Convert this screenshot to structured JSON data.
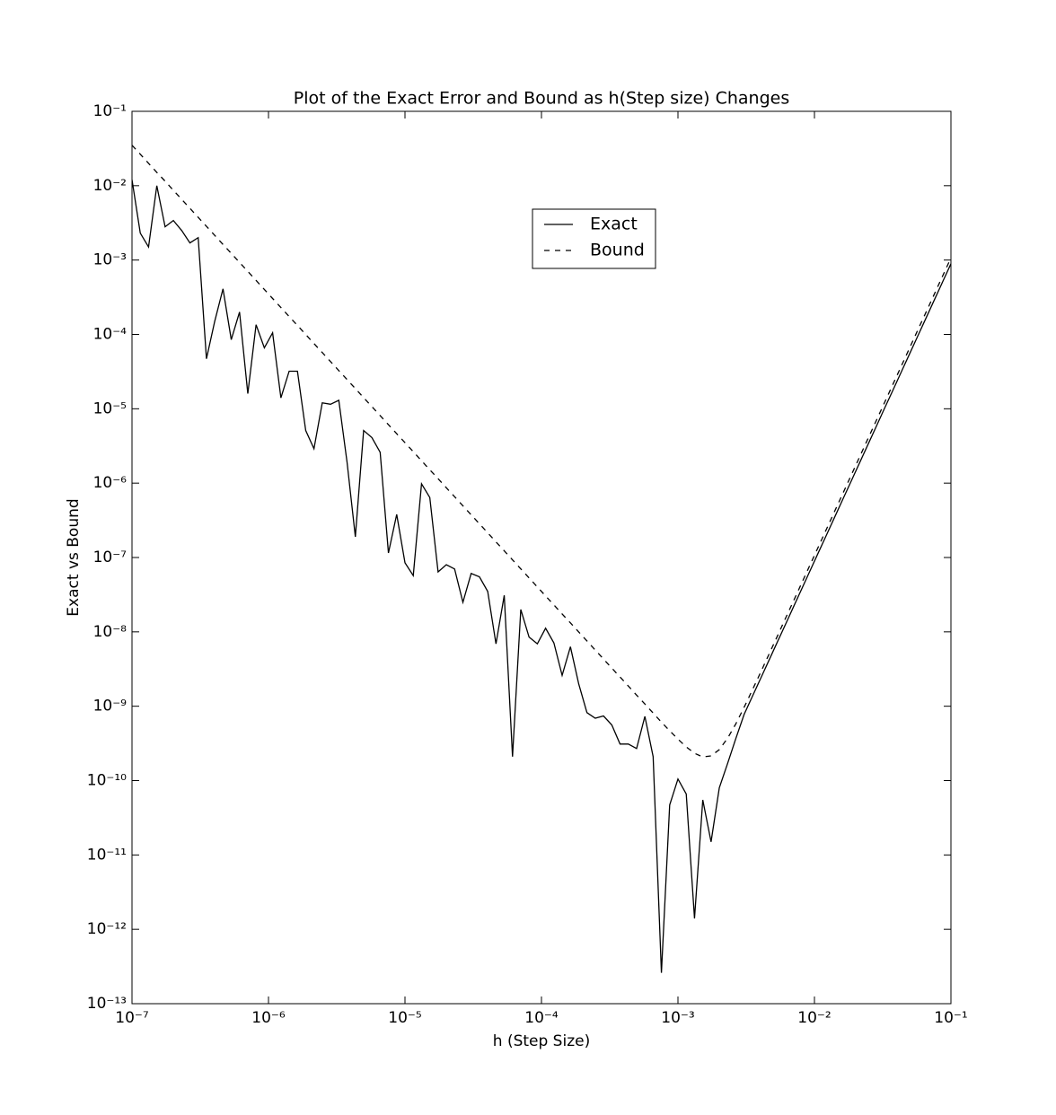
{
  "chart_data": {
    "type": "line",
    "title": "Plot of the Exact Error and Bound as h(Step size) Changes",
    "x_label": "h (Step Size)",
    "y_label": "Exact vs Bound",
    "x_scale": "log",
    "y_scale": "log",
    "legend": "upper center",
    "x": [
      1e-07,
      1.15e-07,
      1.322e-07,
      1.52e-07,
      1.748e-07,
      2.009e-07,
      2.31e-07,
      2.657e-07,
      3.054e-07,
      3.511e-07,
      4.037e-07,
      4.642e-07,
      5.337e-07,
      6.136e-07,
      7.055e-07,
      8.111e-07,
      9.326e-07,
      1.072e-06,
      1.233e-06,
      1.417e-06,
      1.63e-06,
      1.874e-06,
      2.154e-06,
      2.477e-06,
      2.848e-06,
      3.275e-06,
      3.765e-06,
      4.329e-06,
      4.977e-06,
      5.722e-06,
      6.579e-06,
      7.565e-06,
      8.697e-06,
      1e-05,
      1.15e-05,
      1.322e-05,
      1.52e-05,
      1.748e-05,
      2.009e-05,
      2.31e-05,
      2.657e-05,
      3.054e-05,
      3.511e-05,
      4.037e-05,
      4.642e-05,
      5.337e-05,
      6.136e-05,
      7.055e-05,
      8.111e-05,
      9.326e-05,
      0.0001072,
      0.0001233,
      0.0001417,
      0.000163,
      0.0001874,
      0.0002154,
      0.0002477,
      0.0002848,
      0.0003275,
      0.0003765,
      0.0004329,
      0.0004977,
      0.0005722,
      0.0006579,
      0.0007565,
      0.0008697,
      0.001,
      0.00115,
      0.001322,
      0.00152,
      0.001748,
      0.002009,
      0.00231,
      0.002657,
      0.003054,
      0.003511,
      0.004037,
      0.004642,
      0.005337,
      0.006136,
      0.007055,
      0.008111,
      0.009326,
      0.01072,
      0.01233,
      0.01417,
      0.0163,
      0.01874,
      0.02154,
      0.02477,
      0.02848,
      0.03275,
      0.03765,
      0.04329,
      0.04977,
      0.05722,
      0.06579,
      0.07565,
      0.08697,
      0.1
    ],
    "series": [
      {
        "name": "Exact",
        "color": "#000000",
        "linestyle": "solid",
        "values": [
          0.012,
          0.0023,
          0.0015,
          0.01,
          0.0028,
          0.0034,
          0.0025,
          0.0017,
          0.002,
          4.7e-05,
          0.00015,
          0.00041,
          8.5e-05,
          0.0002,
          1.6e-05,
          0.000135,
          6.6e-05,
          0.000105,
          1.4e-05,
          3.2e-05,
          3.2e-05,
          5.1e-06,
          2.9e-06,
          1.2e-05,
          1.15e-05,
          1.3e-05,
          1.9e-06,
          1.9e-07,
          5.1e-06,
          4.1e-06,
          2.6e-06,
          1.15e-07,
          3.8e-07,
          8.5e-08,
          5.7e-08,
          9.8e-07,
          6.4e-07,
          6.4e-08,
          8e-08,
          7e-08,
          2.5e-08,
          6.1e-08,
          5.5e-08,
          3.5e-08,
          6.9e-09,
          3.1e-08,
          2.1e-10,
          2e-08,
          8.5e-09,
          6.9e-09,
          1.12e-08,
          7.1e-09,
          2.6e-09,
          6.3e-09,
          2e-09,
          8.2e-10,
          6.9e-10,
          7.4e-10,
          5.6e-10,
          3.1e-10,
          3.1e-10,
          2.7e-10,
          7.3e-10,
          2.1e-10,
          2.6e-13,
          4.7e-11,
          1.05e-10,
          6.6e-11,
          1.4e-12,
          5.5e-11,
          1.5e-11,
          8e-11,
          1.7e-10,
          3.7e-10,
          7.76e-10,
          1.36e-09,
          2.37e-09,
          4.14e-09,
          7.24e-09,
          1.26e-08,
          2.21e-08,
          3.86e-08,
          6.75e-08,
          1.18e-07,
          2.06e-07,
          3.6e-07,
          6.3e-07,
          1.1e-06,
          1.92e-06,
          3.36e-06,
          5.87e-06,
          1.03e-05,
          1.79e-05,
          3.13e-05,
          5.47e-05,
          9.56e-05,
          0.000167,
          0.000292,
          0.00051,
          0.000891
        ]
      },
      {
        "name": "Bound",
        "color": "#000000",
        "linestyle": "dashed",
        "values": [
          0.035,
          0.0265,
          0.02,
          0.0151,
          0.0115,
          0.00867,
          0.00656,
          0.00496,
          0.00375,
          0.00284,
          0.00215,
          0.00162,
          0.00123,
          0.000929,
          0.000703,
          0.000532,
          0.000402,
          0.000304,
          0.00023,
          0.000174,
          0.000132,
          9.97e-05,
          7.54e-05,
          5.7e-05,
          4.31e-05,
          3.26e-05,
          2.47e-05,
          1.87e-05,
          1.41e-05,
          1.07e-05,
          8.09e-06,
          6.11e-06,
          4.62e-06,
          3.5e-06,
          2.65e-06,
          2e-06,
          1.51e-06,
          1.15e-06,
          8.67e-07,
          6.56e-07,
          4.96e-07,
          3.75e-07,
          2.84e-07,
          2.15e-07,
          1.62e-07,
          1.23e-07,
          9.29e-08,
          7.03e-08,
          5.32e-08,
          4.02e-08,
          3.04e-08,
          2.3e-08,
          1.74e-08,
          1.32e-08,
          9.97e-09,
          7.54e-09,
          5.7e-09,
          4.31e-09,
          3.26e-09,
          2.47e-09,
          1.87e-09,
          1.41e-09,
          1.07e-09,
          8.09e-10,
          6.11e-10,
          4.68e-10,
          3.61e-10,
          2.84e-10,
          2.33e-10,
          2.08e-10,
          2.15e-10,
          2.61e-10,
          3.71e-10,
          5.82e-10,
          9.69e-10,
          1.66e-09,
          2.86e-09,
          4.99e-09,
          8.68e-09,
          1.52e-08,
          2.65e-08,
          4.63e-08,
          8.09e-08,
          1.41e-07,
          2.47e-07,
          4.32e-07,
          7.54e-07,
          1.32e-06,
          2.3e-06,
          4.03e-06,
          7.03e-06,
          1.23e-05,
          2.15e-05,
          3.75e-05,
          6.56e-05,
          0.000115,
          0.0002,
          0.00035,
          0.000611,
          0.00107
        ]
      }
    ],
    "xlim": [
      1e-07,
      0.1
    ],
    "ylim": [
      1e-13,
      0.1
    ],
    "xticks": [
      {
        "value": 1e-07,
        "label": "10⁻⁷"
      },
      {
        "value": 1e-06,
        "label": "10⁻⁶"
      },
      {
        "value": 1e-05,
        "label": "10⁻⁵"
      },
      {
        "value": 0.0001,
        "label": "10⁻⁴"
      },
      {
        "value": 0.001,
        "label": "10⁻³"
      },
      {
        "value": 0.01,
        "label": "10⁻²"
      },
      {
        "value": 0.1,
        "label": "10⁻¹"
      }
    ],
    "yticks": [
      {
        "value": 1e-13,
        "label": "10⁻¹³"
      },
      {
        "value": 1e-12,
        "label": "10⁻¹²"
      },
      {
        "value": 1e-11,
        "label": "10⁻¹¹"
      },
      {
        "value": 1e-10,
        "label": "10⁻¹⁰"
      },
      {
        "value": 1e-09,
        "label": "10⁻⁹"
      },
      {
        "value": 1e-08,
        "label": "10⁻⁸"
      },
      {
        "value": 1e-07,
        "label": "10⁻⁷"
      },
      {
        "value": 1e-06,
        "label": "10⁻⁶"
      },
      {
        "value": 1e-05,
        "label": "10⁻⁵"
      },
      {
        "value": 0.0001,
        "label": "10⁻⁴"
      },
      {
        "value": 0.001,
        "label": "10⁻³"
      },
      {
        "value": 0.01,
        "label": "10⁻²"
      },
      {
        "value": 0.1,
        "label": "10⁻¹"
      }
    ],
    "grid": false
  }
}
